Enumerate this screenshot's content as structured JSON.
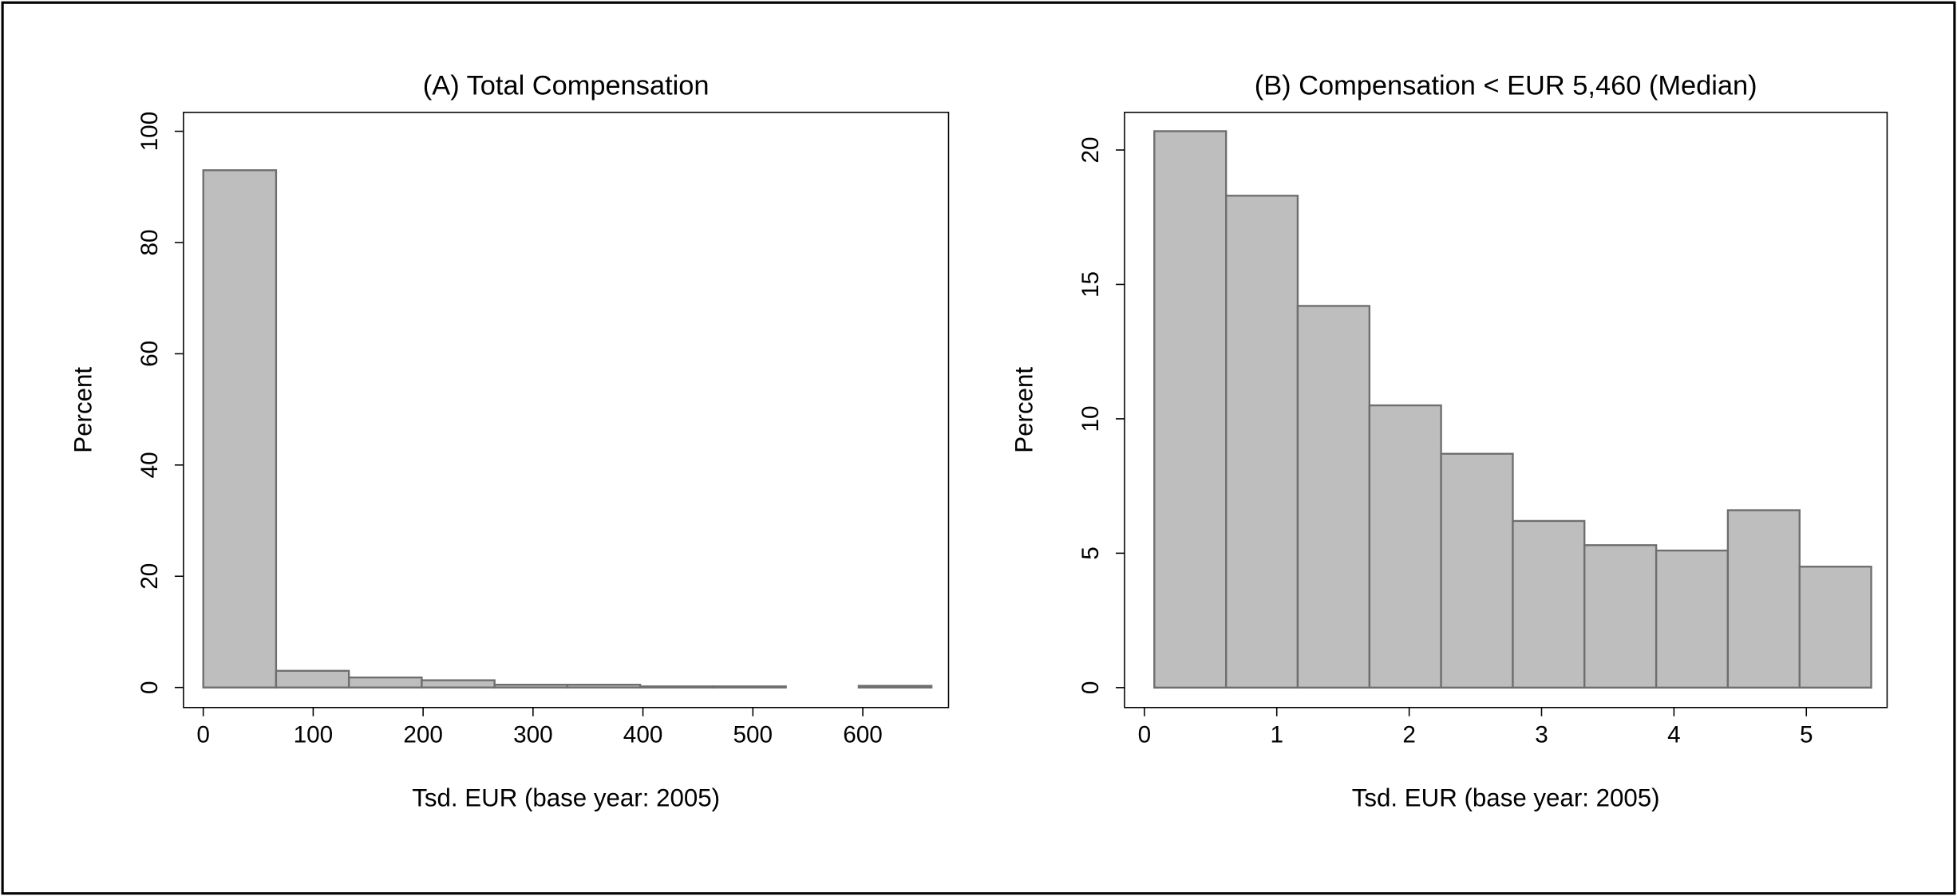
{
  "chart_data": [
    {
      "type": "histogram",
      "title": "(A) Total Compensation",
      "xlabel": "Tsd. EUR (base year: 2005)",
      "ylabel": "Percent",
      "bins": [
        0,
        66.25,
        132.5,
        198.75,
        265,
        331.25,
        397.5,
        463.75,
        530,
        596.25,
        662.5
      ],
      "values": [
        93,
        3,
        1.8,
        1.3,
        0.5,
        0.5,
        0.2,
        0.2,
        0,
        0.3
      ],
      "xlim": [
        -18,
        678
      ],
      "ylim": [
        -3.6,
        103.4
      ],
      "xticks": [
        0,
        100,
        200,
        300,
        400,
        500,
        600
      ],
      "yticks": [
        0,
        20,
        40,
        60,
        80,
        100
      ],
      "color": "#bebebe",
      "edgecolor": "#6e6e6e"
    },
    {
      "type": "histogram",
      "title": "(B) Compensation < EUR 5,460 (Median)",
      "xlabel": "Tsd. EUR (base year: 2005)",
      "ylabel": "Percent",
      "bins": [
        0.075,
        0.617,
        1.158,
        1.7,
        2.241,
        2.783,
        3.324,
        3.866,
        4.407,
        4.949,
        5.49
      ],
      "values": [
        20.7,
        18.3,
        14.2,
        10.5,
        8.7,
        6.2,
        5.3,
        5.1,
        6.6,
        4.5
      ],
      "xlim": [
        -0.15,
        5.61
      ],
      "ylim": [
        -0.74,
        21.4
      ],
      "xticks": [
        0,
        1,
        2,
        3,
        4,
        5
      ],
      "yticks": [
        0,
        5,
        10,
        15,
        20
      ],
      "color": "#bebebe",
      "edgecolor": "#6e6e6e"
    }
  ]
}
